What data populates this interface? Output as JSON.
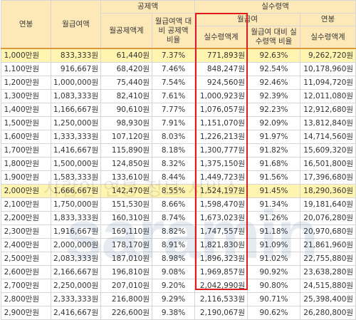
{
  "headers": {
    "annual_salary": "연봉",
    "monthly_salary": "월급여액",
    "deduction_group": "공제액",
    "net_group": "실수령액",
    "monthly_sub": "월급여",
    "annual_sub": "연봉",
    "deduction_total": "월공제액계",
    "deduction_ratio": "월급여액 대비 공제액 비율",
    "net_monthly": "실수령액계",
    "net_ratio": "월급여 대비 실수령액 비율",
    "net_annual": "실수령액계"
  },
  "watermark": {
    "korean": "사람인 연봉 정보 서비스",
    "logo": "saramin"
  },
  "rows": [
    {
      "salary": "1,000만원",
      "monthly": "833,333원",
      "deduction": "61,440원",
      "ded_ratio": "7.37%",
      "net_monthly": "771,893원",
      "net_ratio": "92.63%",
      "net_annual": "9,262,720원",
      "highlight": true
    },
    {
      "salary": "1,100만원",
      "monthly": "916,667원",
      "deduction": "68,420원",
      "ded_ratio": "7.46%",
      "net_monthly": "848,247원",
      "net_ratio": "92.54%",
      "net_annual": "10,178,960원",
      "highlight": false
    },
    {
      "salary": "1,200만원",
      "monthly": "1,000,000원",
      "deduction": "75,440원",
      "ded_ratio": "7.54%",
      "net_monthly": "924,560원",
      "net_ratio": "92.46%",
      "net_annual": "11,094,720원",
      "highlight": false
    },
    {
      "salary": "1,300만원",
      "monthly": "1,083,333원",
      "deduction": "82,410원",
      "ded_ratio": "7.61%",
      "net_monthly": "1,000,923원",
      "net_ratio": "92.39%",
      "net_annual": "12,011,080원",
      "highlight": false
    },
    {
      "salary": "1,400만원",
      "monthly": "1,166,667원",
      "deduction": "90,610원",
      "ded_ratio": "7.77%",
      "net_monthly": "1,076,057원",
      "net_ratio": "92.23%",
      "net_annual": "12,912,680원",
      "highlight": false
    },
    {
      "salary": "1,500만원",
      "monthly": "1,250,000원",
      "deduction": "98,930원",
      "ded_ratio": "7.91%",
      "net_monthly": "1,151,070원",
      "net_ratio": "92.09%",
      "net_annual": "13,812,840원",
      "highlight": false
    },
    {
      "salary": "1,600만원",
      "monthly": "1,333,333원",
      "deduction": "107,120원",
      "ded_ratio": "8.03%",
      "net_monthly": "1,226,213원",
      "net_ratio": "91.97%",
      "net_annual": "14,714,560원",
      "highlight": false
    },
    {
      "salary": "1,700만원",
      "monthly": "1,416,667원",
      "deduction": "115,890원",
      "ded_ratio": "8.18%",
      "net_monthly": "1,300,777원",
      "net_ratio": "91.82%",
      "net_annual": "15,609,320원",
      "highlight": false
    },
    {
      "salary": "1,800만원",
      "monthly": "1,500,000원",
      "deduction": "124,850원",
      "ded_ratio": "8.32%",
      "net_monthly": "1,375,150원",
      "net_ratio": "91.68%",
      "net_annual": "16,501,800원",
      "highlight": false
    },
    {
      "salary": "1,900만원",
      "monthly": "1,583,333원",
      "deduction": "133,610원",
      "ded_ratio": "8.44%",
      "net_monthly": "1,449,723원",
      "net_ratio": "91.56%",
      "net_annual": "17,396,680원",
      "highlight": false
    },
    {
      "salary": "2,000만원",
      "monthly": "1,666,667원",
      "deduction": "142,470원",
      "ded_ratio": "8.55%",
      "net_monthly": "1,524,197원",
      "net_ratio": "91.45%",
      "net_annual": "18,290,360원",
      "highlight": true
    },
    {
      "salary": "2,100만원",
      "monthly": "1,750,000원",
      "deduction": "151,530원",
      "ded_ratio": "8.66%",
      "net_monthly": "1,598,470원",
      "net_ratio": "91.34%",
      "net_annual": "19,181,640원",
      "highlight": false
    },
    {
      "salary": "2,200만원",
      "monthly": "1,833,333원",
      "deduction": "160,310원",
      "ded_ratio": "8.74%",
      "net_monthly": "1,673,023원",
      "net_ratio": "91.26%",
      "net_annual": "20,076,280원",
      "highlight": false
    },
    {
      "salary": "2,300만원",
      "monthly": "1,916,667원",
      "deduction": "169,110원",
      "ded_ratio": "8.82%",
      "net_monthly": "1,747,557원",
      "net_ratio": "91.18%",
      "net_annual": "20,970,680원",
      "highlight": false
    },
    {
      "salary": "2,400만원",
      "monthly": "2,000,000원",
      "deduction": "178,170원",
      "ded_ratio": "8.91%",
      "net_monthly": "1,821,830원",
      "net_ratio": "91.09%",
      "net_annual": "21,861,960원",
      "highlight": false
    },
    {
      "salary": "2,500만원",
      "monthly": "2,083,333원",
      "deduction": "187,010원",
      "ded_ratio": "8.98%",
      "net_monthly": "1,896,323원",
      "net_ratio": "91.02%",
      "net_annual": "22,755,880원",
      "highlight": false
    },
    {
      "salary": "2,600만원",
      "monthly": "2,166,667원",
      "deduction": "196,810원",
      "ded_ratio": "9.08%",
      "net_monthly": "1,969,857원",
      "net_ratio": "90.92%",
      "net_annual": "23,638,280원",
      "highlight": false
    },
    {
      "salary": "2,700만원",
      "monthly": "2,250,000원",
      "deduction": "207,010원",
      "ded_ratio": "9.20%",
      "net_monthly": "2,042,990원",
      "net_ratio": "90.80%",
      "net_annual": "24,515,880원",
      "highlight": false
    },
    {
      "salary": "2,800만원",
      "monthly": "2,333,333원",
      "deduction": "216,800원",
      "ded_ratio": "9.29%",
      "net_monthly": "2,116,533원",
      "net_ratio": "90.71%",
      "net_annual": "25,398,400원",
      "highlight": false
    },
    {
      "salary": "2,900만원",
      "monthly": "2,416,667원",
      "deduction": "226,600원",
      "ded_ratio": "9.38%",
      "net_monthly": "2,190,067원",
      "net_ratio": "90.62%",
      "net_annual": "26,280,800원",
      "highlight": false
    }
  ],
  "colors": {
    "header_bg": "#fde8b8",
    "highlight_row": "#fff4b0",
    "red_box": "#e01b1b"
  }
}
